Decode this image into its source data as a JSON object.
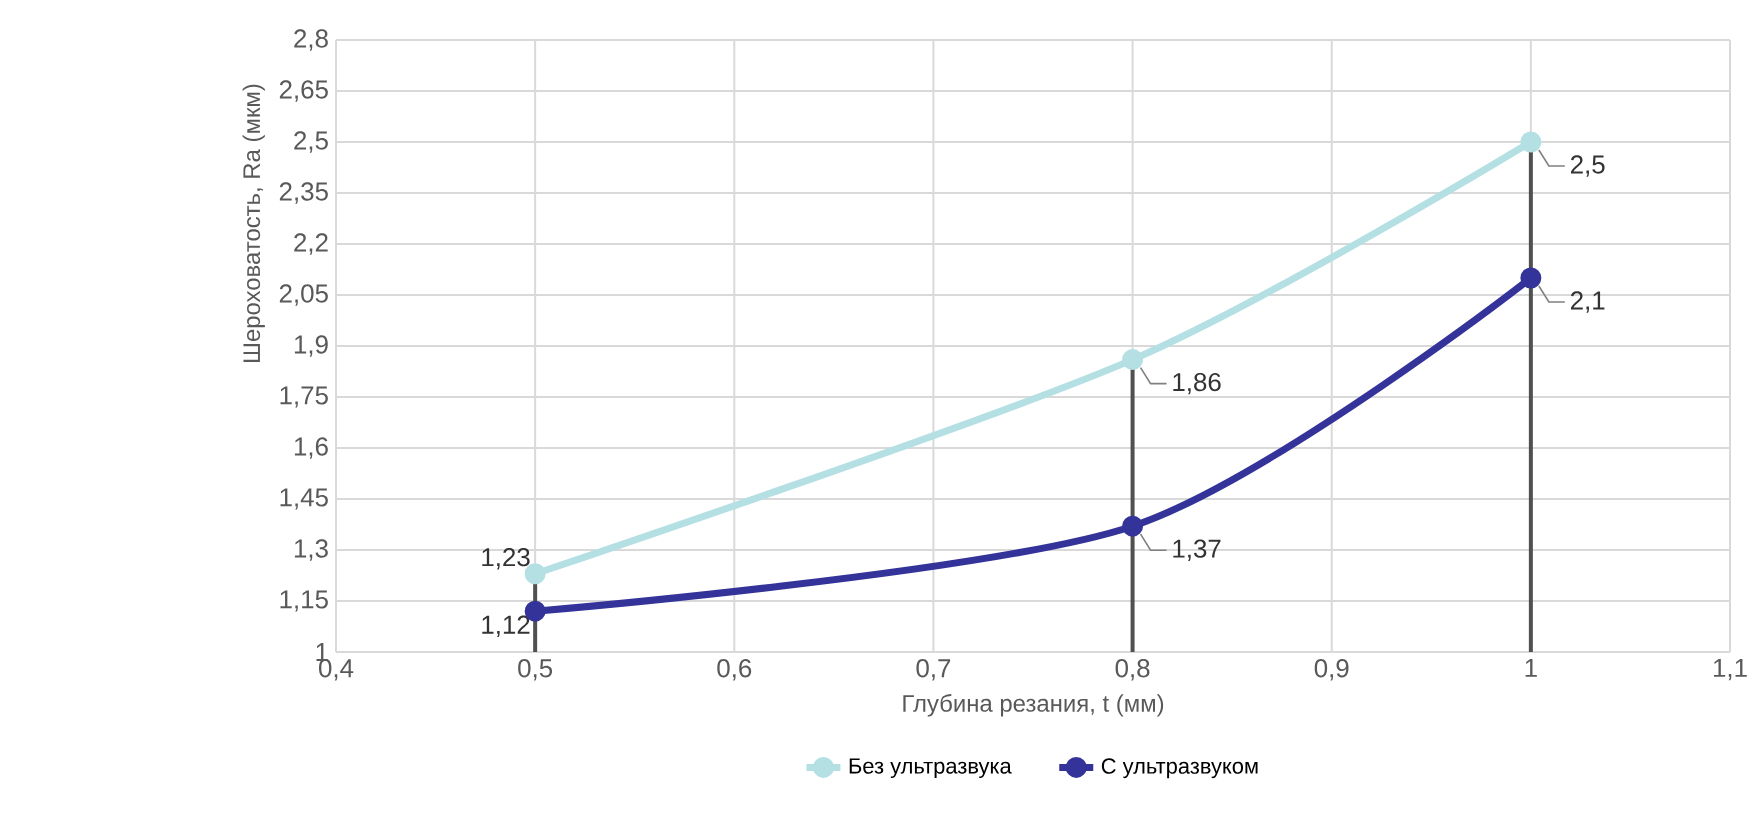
{
  "chart_data": {
    "type": "line",
    "xlabel": "Глубина резания, t (мм)",
    "ylabel": "Шероховатость, Ra (мкм)",
    "x": [
      0.5,
      0.8,
      1
    ],
    "series": [
      {
        "name": "Без ультразвука",
        "color": "#b4e0e4",
        "values": [
          1.23,
          1.86,
          2.5
        ],
        "value_labels": [
          "1,23",
          "1,86",
          "2,5"
        ]
      },
      {
        "name": "С ультразвуком",
        "color": "#33339a",
        "values": [
          1.12,
          1.37,
          2.1
        ],
        "value_labels": [
          "1,12",
          "1,37",
          "2,1"
        ]
      }
    ],
    "xlim": [
      0.4,
      1.1
    ],
    "xticks": [
      {
        "value": 0.4,
        "label": "0,4"
      },
      {
        "value": 0.5,
        "label": "0,5"
      },
      {
        "value": 0.6,
        "label": "0,6"
      },
      {
        "value": 0.7,
        "label": "0,7"
      },
      {
        "value": 0.8,
        "label": "0,8"
      },
      {
        "value": 0.9,
        "label": "0,9"
      },
      {
        "value": 1,
        "label": "1"
      },
      {
        "value": 1.1,
        "label": "1,1"
      }
    ],
    "ylim": [
      1,
      2.8
    ],
    "yticks": [
      {
        "value": 1,
        "label": "1"
      },
      {
        "value": 1.15,
        "label": "1,15"
      },
      {
        "value": 1.3,
        "label": "1,3"
      },
      {
        "value": 1.45,
        "label": "1,45"
      },
      {
        "value": 1.6,
        "label": "1,6"
      },
      {
        "value": 1.75,
        "label": "1,75"
      },
      {
        "value": 1.9,
        "label": "1,9"
      },
      {
        "value": 2.05,
        "label": "2,05"
      },
      {
        "value": 2.2,
        "label": "2,2"
      },
      {
        "value": 2.35,
        "label": "2,35"
      },
      {
        "value": 2.5,
        "label": "2,5"
      },
      {
        "value": 2.65,
        "label": "2,65"
      },
      {
        "value": 2.8,
        "label": "2,8"
      }
    ],
    "ref_lines": [
      {
        "axis": "x",
        "value": 0.5,
        "color": "#505050"
      },
      {
        "axis": "x",
        "value": 0.8,
        "color": "#505050"
      },
      {
        "axis": "x",
        "value": 1,
        "color": "#505050"
      }
    ],
    "grid": true,
    "legend": "bottom",
    "marker": "circle",
    "line_style": "solid"
  }
}
